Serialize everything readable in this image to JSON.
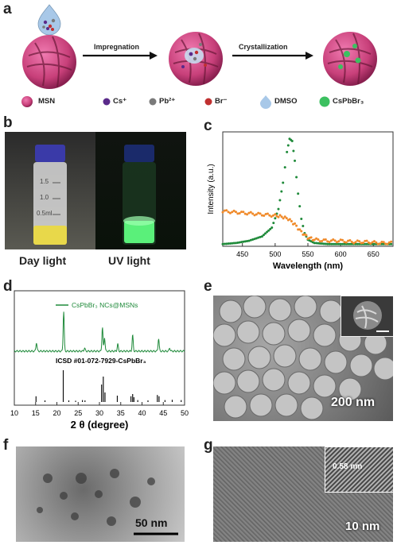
{
  "panels": {
    "a": {
      "letter": "a",
      "arrow1": "Impregnation",
      "arrow2": "Crystallization",
      "legend": [
        {
          "label": "MSN",
          "icon": "msn-sphere-icon",
          "color": "#d0508a"
        },
        {
          "label": "Cs⁺",
          "icon": "cs-ion-icon",
          "color": "#5a2a8a"
        },
        {
          "label": "Pb²⁺",
          "icon": "pb-ion-icon",
          "color": "#7a7a7a"
        },
        {
          "label": "Br⁻",
          "icon": "br-ion-icon",
          "color": "#c03030"
        },
        {
          "label": "DMSO",
          "icon": "dmso-drop-icon",
          "color": "#a8c8e8"
        },
        {
          "label": "CsPbBr₃",
          "icon": "cspbbr3-crystal-icon",
          "color": "#3cc060"
        }
      ]
    },
    "b": {
      "letter": "b",
      "day_label": "Day light",
      "uv_label": "UV light",
      "vial_marks": [
        "1.5",
        "1.0",
        "0.5ml"
      ]
    },
    "c": {
      "letter": "c"
    },
    "d": {
      "letter": "d"
    },
    "e": {
      "letter": "e",
      "scale": "200 nm"
    },
    "f": {
      "letter": "f",
      "scale": "50 nm"
    },
    "g": {
      "letter": "g",
      "scale": "10 nm",
      "inset_label": "0.58 nm"
    }
  },
  "chart_data": [
    {
      "type": "scatter",
      "panel": "c",
      "xlabel": "Wavelength (nm)",
      "ylabel": "Intensity (a.u.)",
      "xlim": [
        420,
        680
      ],
      "x_ticks": [
        450,
        500,
        550,
        600,
        650
      ],
      "series": [
        {
          "color": "#1f8a3a",
          "x": [
            420,
            440,
            460,
            480,
            495,
            505,
            512,
            518,
            522,
            526,
            530,
            535,
            540,
            545,
            550,
            560,
            580,
            600,
            620,
            640,
            660,
            680
          ],
          "y": [
            0.02,
            0.03,
            0.05,
            0.09,
            0.17,
            0.34,
            0.58,
            0.86,
            0.98,
            0.96,
            0.78,
            0.48,
            0.25,
            0.12,
            0.06,
            0.03,
            0.02,
            0.02,
            0.02,
            0.02,
            0.02,
            0.02
          ]
        },
        {
          "color": "#f08a2a",
          "x": [
            420,
            440,
            460,
            480,
            500,
            510,
            520,
            530,
            540,
            550,
            560,
            580,
            600,
            620,
            640,
            660,
            680
          ],
          "y": [
            0.32,
            0.31,
            0.3,
            0.29,
            0.28,
            0.27,
            0.25,
            0.2,
            0.13,
            0.08,
            0.06,
            0.05,
            0.05,
            0.04,
            0.04,
            0.03,
            0.03
          ]
        }
      ]
    },
    {
      "type": "line",
      "panel": "d",
      "xlabel": "2 θ (degree)",
      "xlim": [
        10,
        50
      ],
      "x_ticks": [
        10,
        15,
        20,
        25,
        30,
        35,
        40,
        45,
        50
      ],
      "legend": "CsPbBr₃ NCs@MSNs",
      "reference_label": "ICSD #01-072-7929-CsPbBr₃",
      "pattern": {
        "color": "#1f8a3a",
        "peaks": [
          [
            15.2,
            0.22
          ],
          [
            21.6,
            1.0
          ],
          [
            26.5,
            0.08
          ],
          [
            30.7,
            0.6
          ],
          [
            31.2,
            0.35
          ],
          [
            34.3,
            0.18
          ],
          [
            37.8,
            0.4
          ],
          [
            43.9,
            0.32
          ],
          [
            46.5,
            0.08
          ]
        ]
      },
      "reference_sticks": [
        [
          15.1,
          0.18
        ],
        [
          17.2,
          0.05
        ],
        [
          21.5,
          1.0
        ],
        [
          22.8,
          0.05
        ],
        [
          24.4,
          0.04
        ],
        [
          26.0,
          0.06
        ],
        [
          26.6,
          0.05
        ],
        [
          30.5,
          0.55
        ],
        [
          30.9,
          0.8
        ],
        [
          31.3,
          0.3
        ],
        [
          34.2,
          0.2
        ],
        [
          37.4,
          0.18
        ],
        [
          37.8,
          0.25
        ],
        [
          38.1,
          0.15
        ],
        [
          39.0,
          0.06
        ],
        [
          41.4,
          0.05
        ],
        [
          43.6,
          0.22
        ],
        [
          44.0,
          0.18
        ],
        [
          45.4,
          0.06
        ],
        [
          47.1,
          0.07
        ],
        [
          49.2,
          0.06
        ]
      ]
    }
  ]
}
